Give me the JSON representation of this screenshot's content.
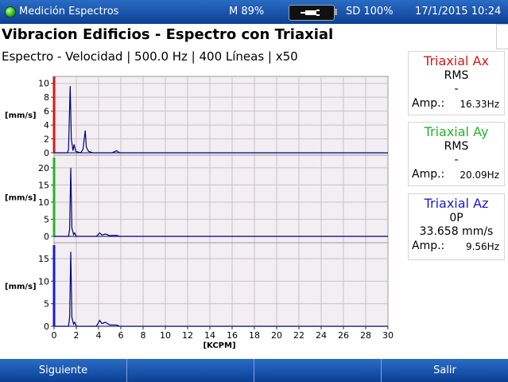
{
  "status_bar": {
    "app_title": "Medición Espectros",
    "memory": "M 89%",
    "sd": "SD 100%",
    "datetime": "17/1/2015 10:24"
  },
  "header": {
    "title": "Vibracion Edificios - Espectro con Triaxial",
    "subtitle": "Espectro - Velocidad | 500.0 Hz | 400 Líneas | x50"
  },
  "cards": [
    {
      "title": "Triaxial Ax",
      "color": "#d81818",
      "mode": "RMS",
      "value": "-",
      "amp_label": "Amp.:",
      "amp_value": "16.33Hz"
    },
    {
      "title": "Triaxial Ay",
      "color": "#27b327",
      "mode": "RMS",
      "value": "-",
      "amp_label": "Amp.:",
      "amp_value": "20.09Hz"
    },
    {
      "title": "Triaxial Az",
      "color": "#1a1ad0",
      "mode": "0P",
      "value": "33.658 mm/s",
      "amp_label": "Amp.:",
      "amp_value": "9.56Hz"
    }
  ],
  "buttons": {
    "next": "Siguiente",
    "exit": "Salir"
  },
  "chart_data": [
    {
      "type": "line",
      "ylabel": "[mm/s]",
      "ylim": [
        0,
        11
      ],
      "yticks": [
        0,
        2,
        4,
        6,
        8,
        10
      ],
      "axis_color": "#d81818",
      "line_color": "#00007a",
      "series": [
        {
          "points": [
            [
              0,
              0
            ],
            [
              1.2,
              0
            ],
            [
              1.3,
              0.5
            ],
            [
              1.45,
              9.6
            ],
            [
              1.55,
              2
            ],
            [
              1.7,
              0.3
            ],
            [
              1.8,
              1.2
            ],
            [
              1.95,
              0.2
            ],
            [
              2.4,
              0
            ],
            [
              2.6,
              0.5
            ],
            [
              2.8,
              3.2
            ],
            [
              2.9,
              0.8
            ],
            [
              3.1,
              0.2
            ],
            [
              3.5,
              0
            ],
            [
              5.2,
              0
            ],
            [
              5.6,
              0.3
            ],
            [
              5.9,
              0
            ],
            [
              30,
              0
            ]
          ]
        }
      ]
    },
    {
      "type": "line",
      "ylabel": "[mm/s]",
      "ylim": [
        0,
        23
      ],
      "yticks": [
        0,
        5,
        10,
        15,
        20
      ],
      "axis_color": "#27b327",
      "line_color": "#00007a",
      "series": [
        {
          "points": [
            [
              0,
              0
            ],
            [
              1.3,
              0
            ],
            [
              1.4,
              2
            ],
            [
              1.5,
              20
            ],
            [
              1.6,
              2.5
            ],
            [
              1.75,
              0.5
            ],
            [
              1.85,
              1
            ],
            [
              2.0,
              0
            ],
            [
              3.8,
              0
            ],
            [
              4.1,
              1
            ],
            [
              4.3,
              0.4
            ],
            [
              4.6,
              0.7
            ],
            [
              5.0,
              0.2
            ],
            [
              5.6,
              0.3
            ],
            [
              5.9,
              0
            ],
            [
              30,
              0
            ]
          ]
        }
      ]
    },
    {
      "type": "line",
      "ylabel": "[mm/s]",
      "ylim": [
        0,
        18
      ],
      "yticks": [
        0,
        5,
        10,
        15
      ],
      "axis_color": "#1a1ad0",
      "line_color": "#00007a",
      "series": [
        {
          "points": [
            [
              0,
              0
            ],
            [
              1.3,
              0
            ],
            [
              1.4,
              2
            ],
            [
              1.5,
              16.5
            ],
            [
              1.6,
              2
            ],
            [
              1.75,
              0.5
            ],
            [
              1.85,
              0.9
            ],
            [
              2.0,
              0
            ],
            [
              3.8,
              0
            ],
            [
              4.1,
              1.3
            ],
            [
              4.3,
              0.6
            ],
            [
              4.6,
              0.9
            ],
            [
              5.0,
              0.3
            ],
            [
              5.6,
              0.3
            ],
            [
              5.9,
              0
            ],
            [
              30,
              0
            ]
          ]
        }
      ]
    }
  ],
  "x_axis": {
    "label": "[KCPM]",
    "min": 0,
    "max": 30,
    "ticks": [
      0,
      2,
      4,
      6,
      8,
      10,
      12,
      14,
      16,
      18,
      20,
      22,
      24,
      26,
      28,
      30
    ]
  }
}
